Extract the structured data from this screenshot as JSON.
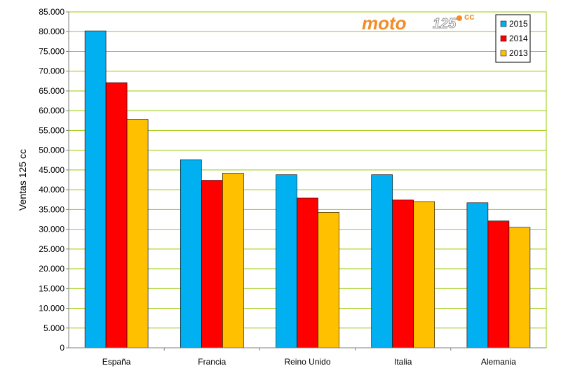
{
  "logo": {
    "text_main": "moto",
    "text_num": "125",
    "text_cc": "cc",
    "color": "#f28c28"
  },
  "chart_data": {
    "type": "bar",
    "title": "",
    "xlabel": "",
    "ylabel": "Ventas 125 cc",
    "ylim": [
      0,
      85000
    ],
    "ytick_step": 5000,
    "ytick_labels": [
      "0",
      "5.000",
      "10.000",
      "15.000",
      "20.000",
      "25.000",
      "30.000",
      "35.000",
      "40.000",
      "45.000",
      "50.000",
      "55.000",
      "60.000",
      "65.000",
      "70.000",
      "75.000",
      "80.000",
      "85.000"
    ],
    "grid": true,
    "grid_color": "#99cc00",
    "plot_background": "#ffffff",
    "legend_position": "top-right",
    "categories": [
      "España",
      "Francia",
      "Reino Unido",
      "Italia",
      "Alemania"
    ],
    "series": [
      {
        "name": "2015",
        "color": "#00b0f0",
        "values": [
          80200,
          47600,
          43800,
          43800,
          36700
        ]
      },
      {
        "name": "2014",
        "color": "#ff0000",
        "values": [
          67100,
          42400,
          37900,
          37400,
          32100
        ]
      },
      {
        "name": "2013",
        "color": "#ffc000",
        "values": [
          57800,
          44200,
          34300,
          37000,
          30500
        ]
      }
    ]
  }
}
